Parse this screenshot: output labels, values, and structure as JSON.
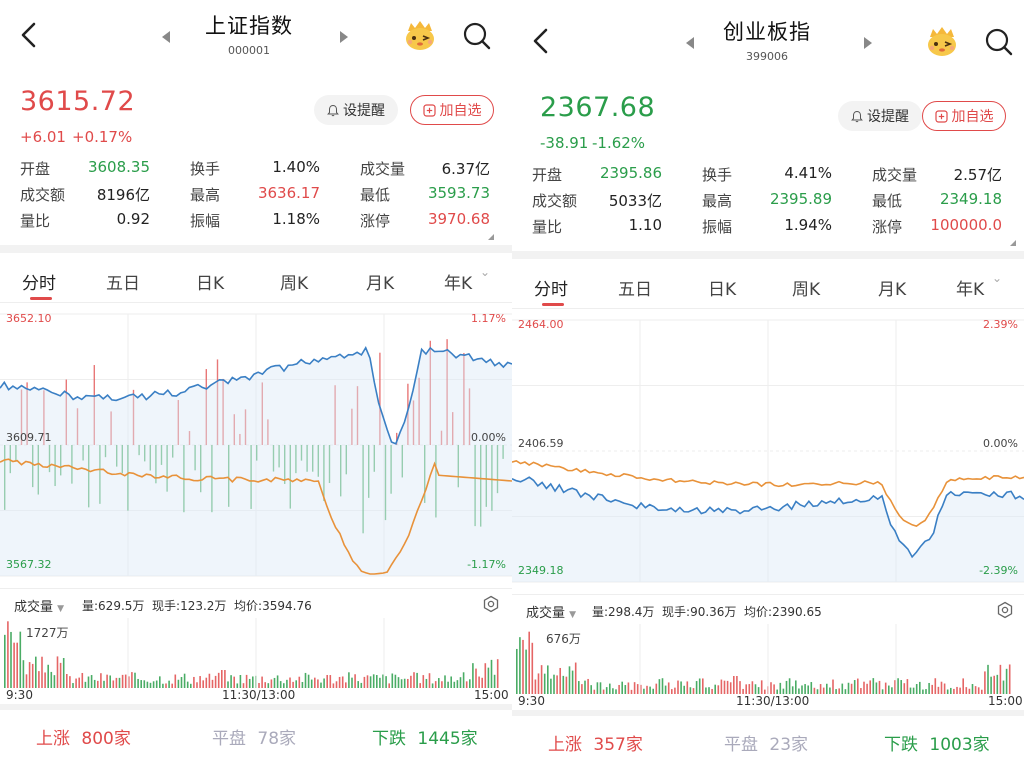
{
  "panels": [
    {
      "title": "上证指数",
      "code": "000001",
      "price": "3615.72",
      "change": "+6.01",
      "change_pct": "+0.17%",
      "change_color": "#e04a4a",
      "remind_label": "设提醒",
      "add_label": "加自选",
      "stats": [
        [
          {
            "label": "开盘",
            "value": "3608.35",
            "color": "green"
          },
          {
            "label": "换手",
            "value": "1.40%",
            "color": "black"
          },
          {
            "label": "成交量",
            "value": "6.37亿",
            "color": "black"
          }
        ],
        [
          {
            "label": "成交额",
            "value": "8196亿",
            "color": "black"
          },
          {
            "label": "最高",
            "value": "3636.17",
            "color": "red"
          },
          {
            "label": "最低",
            "value": "3593.73",
            "color": "green"
          }
        ],
        [
          {
            "label": "量比",
            "value": "0.92",
            "color": "black"
          },
          {
            "label": "振幅",
            "value": "1.18%",
            "color": "black"
          },
          {
            "label": "涨停",
            "value": "3970.68",
            "color": "red"
          }
        ]
      ],
      "tabs": [
        "分时",
        "五日",
        "日K",
        "周K",
        "月K",
        "年K"
      ],
      "chart": {
        "top_left": "3652.10",
        "top_right": "1.17%",
        "mid_left": "3609.71",
        "mid_right": "0.00%",
        "bot_left": "3567.32",
        "bot_right": "-1.17%"
      },
      "volume": {
        "pill": "成交量",
        "stats": "量:629.5万  现手:123.2万  均价:3594.76",
        "max": "1727万",
        "t_start": "9:30",
        "t_mid": "11:30/13:00",
        "t_end": "15:00"
      },
      "footer": {
        "up_label": "上涨",
        "up_value": "800家",
        "flat_label": "平盘",
        "flat_value": "78家",
        "down_label": "下跌",
        "down_value": "1445家"
      }
    },
    {
      "title": "创业板指",
      "code": "399006",
      "price": "2367.68",
      "change": "-38.91",
      "change_pct": "-1.62%",
      "change_color": "#2a9d4a",
      "remind_label": "设提醒",
      "add_label": "加自选",
      "stats": [
        [
          {
            "label": "开盘",
            "value": "2395.86",
            "color": "green"
          },
          {
            "label": "换手",
            "value": "4.41%",
            "color": "black"
          },
          {
            "label": "成交量",
            "value": "2.57亿",
            "color": "black"
          }
        ],
        [
          {
            "label": "成交额",
            "value": "5033亿",
            "color": "black"
          },
          {
            "label": "最高",
            "value": "2395.89",
            "color": "green"
          },
          {
            "label": "最低",
            "value": "2349.18",
            "color": "green"
          }
        ],
        [
          {
            "label": "量比",
            "value": "1.10",
            "color": "black"
          },
          {
            "label": "振幅",
            "value": "1.94%",
            "color": "black"
          },
          {
            "label": "涨停",
            "value": "100000.0",
            "color": "red"
          }
        ]
      ],
      "tabs": [
        "分时",
        "五日",
        "日K",
        "周K",
        "月K",
        "年K"
      ],
      "chart": {
        "top_left": "2464.00",
        "top_right": "2.39%",
        "mid_left": "2406.59",
        "mid_right": "0.00%",
        "bot_left": "2349.18",
        "bot_right": "-2.39%"
      },
      "volume": {
        "pill": "成交量",
        "stats": "量:298.4万  现手:90.36万  均价:2390.65",
        "max": "676万",
        "t_start": "9:30",
        "t_mid": "11:30/13:00",
        "t_end": "15:00"
      },
      "footer": {
        "up_label": "上涨",
        "up_value": "357家",
        "flat_label": "平盘",
        "flat_value": "23家",
        "down_label": "下跌",
        "down_value": "1003家"
      }
    }
  ],
  "colors": {
    "up": "#e04a4a",
    "down": "#2a9d4a",
    "price_line": "#3a7fc4",
    "avg_line": "#e8923a"
  }
}
